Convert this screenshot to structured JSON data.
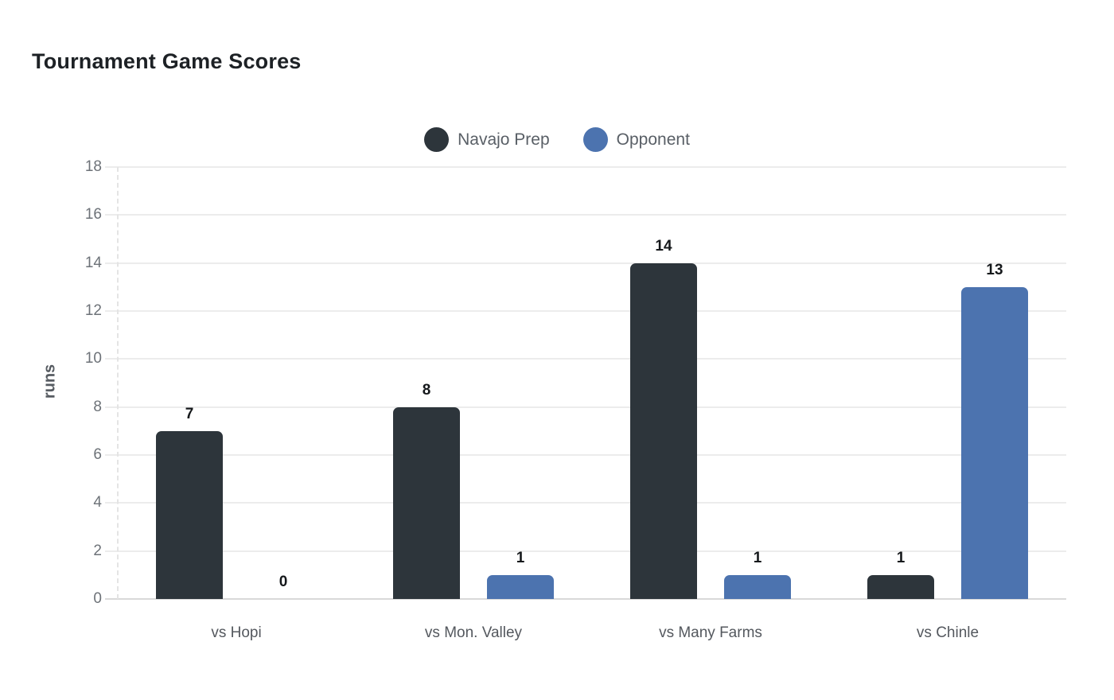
{
  "header": {
    "title": "Tournament Game Scores"
  },
  "colors": {
    "background": "#ffffff",
    "title_text": "#1d2125",
    "legend_text": "#595f66",
    "axis_tick_text": "#6d7278",
    "axis_title_text": "#565b61",
    "value_label_text": "#15181b",
    "gridline": "#ececec",
    "baseline": "#d9d9d9",
    "series_navajo_prep": "#2d353b",
    "series_opponent": "#4c73af"
  },
  "chart_data": {
    "type": "bar",
    "title": "Tournament Game Scores",
    "categories": [
      "vs Hopi",
      "vs Mon. Valley",
      "vs Many Farms",
      "vs Chinle"
    ],
    "series": [
      {
        "name": "Navajo Prep",
        "color": "#2d353b",
        "values": [
          7,
          8,
          14,
          1
        ]
      },
      {
        "name": "Opponent",
        "color": "#4c73af",
        "values": [
          0,
          1,
          1,
          13
        ]
      }
    ],
    "xlabel": "",
    "ylabel": "runs",
    "ylim": [
      0,
      18
    ],
    "ytick_step": 2,
    "yticks": [
      0,
      2,
      4,
      6,
      8,
      10,
      12,
      14,
      16,
      18
    ],
    "grid": true,
    "legend_position": "top-center",
    "value_labels": true,
    "bar_corner_radius": "rounded-top"
  }
}
